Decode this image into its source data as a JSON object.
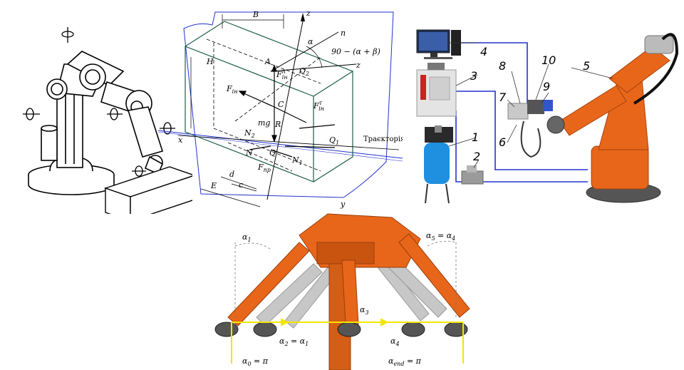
{
  "robot_sketch": {
    "icons": [
      "rotation-arrow-icon",
      "rotation-arrow-icon",
      "rotation-arrow-icon",
      "rotation-arrow-icon",
      "rotation-arrow-icon"
    ]
  },
  "force_diagram": {
    "labels": {
      "B": "B",
      "H": "H",
      "z_top": "z",
      "n": "n",
      "alpha": "α",
      "angle_expr": "90 − (α + β)",
      "z_axis": "z",
      "A": "A",
      "F_in_n": "F",
      "F_in_n_sup": "n",
      "F_in_n_sub": "ін",
      "Q2": "Q",
      "Q2_sub": "2",
      "F_in": "F",
      "F_in_sub": "ін",
      "F_in_tau": "F",
      "F_in_tau_sup": "τ",
      "F_in_tau_sub": "ін",
      "C": "C",
      "mg": "mg",
      "R": "R",
      "N2": "N",
      "N2_sub": "2",
      "Q1": "Q",
      "Q1_sub": "1",
      "x": "x",
      "trajectory": "Траєкторія",
      "N": "N",
      "Q": "Q",
      "N1": "N",
      "N1_sub": "1",
      "d": "d",
      "F_pr": "F",
      "F_pr_sub": "пр",
      "c": "c",
      "E": "E",
      "y": "y"
    }
  },
  "welding_setup": {
    "callouts": [
      "1",
      "2",
      "3",
      "4",
      "5",
      "6",
      "7",
      "8",
      "9",
      "10"
    ],
    "colors": {
      "cable": "#2233cc",
      "robot": "#e8661a",
      "tank": "#1f8fe0"
    }
  },
  "parallel_robot": {
    "labels": {
      "alpha1": "α",
      "alpha1_sub": "1",
      "alpha5": "α",
      "alpha5_sub": "5",
      "alpha5_eq": " = α",
      "alpha5_eq_sub": "4",
      "alpha3": "α",
      "alpha3_sub": "3",
      "alpha2": "α",
      "alpha2_sub": "2",
      "alpha2_eq": " = α",
      "alpha2_eq_sub": "1",
      "alpha4": "α",
      "alpha4_sub": "4",
      "alpha0": "α",
      "alpha0_sub": "0",
      "alpha0_eq": " = π",
      "alphaend": "α",
      "alphaend_sub": "end",
      "alphaend_eq": " = π"
    },
    "colors": {
      "robot": "#e8661a",
      "path": "#f2e600"
    }
  }
}
